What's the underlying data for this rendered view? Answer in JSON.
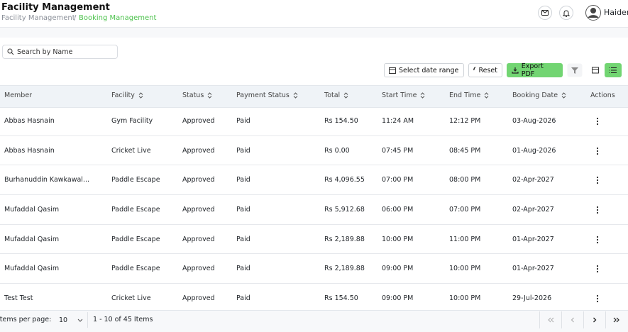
{
  "header": {
    "title": "Facility Management",
    "breadcrumb": [
      "Facility Management",
      "Booking Management"
    ],
    "separator": "/",
    "user": "Haider"
  },
  "toolbar": {
    "search_placeholder": "Search by Name",
    "date_range": "Select date range",
    "reset": "Reset",
    "export": "Export PDF"
  },
  "table": {
    "columns": [
      {
        "label": "Member",
        "sortable": false
      },
      {
        "label": "Facility",
        "sortable": true
      },
      {
        "label": "Status",
        "sortable": true
      },
      {
        "label": "Payment Status",
        "sortable": true
      },
      {
        "label": "Total",
        "sortable": true
      },
      {
        "label": "Start Time",
        "sortable": true
      },
      {
        "label": "End Time",
        "sortable": true
      },
      {
        "label": "Booking Date",
        "sortable": true
      },
      {
        "label": "Actions",
        "sortable": false
      }
    ],
    "rows": [
      [
        "Abbas Hasnain",
        "Gym Facility",
        "Approved",
        "Paid",
        "Rs 154.50",
        "11:24 AM",
        "12:12 PM",
        "03-Aug-2026"
      ],
      [
        "Abbas Hasnain",
        "Cricket Live",
        "Approved",
        "Paid",
        "Rs 0.00",
        "07:45 PM",
        "08:45 PM",
        "01-Aug-2026"
      ],
      [
        "Burhanuddin Kawkawal...",
        "Paddle Escape",
        "Approved",
        "Paid",
        "Rs 4,096.55",
        "07:00 PM",
        "08:00 PM",
        "02-Apr-2027"
      ],
      [
        "Mufaddal Qasim",
        "Paddle Escape",
        "Approved",
        "Paid",
        "Rs 5,912.68",
        "06:00 PM",
        "07:00 PM",
        "02-Apr-2027"
      ],
      [
        "Mufaddal Qasim",
        "Paddle Escape",
        "Approved",
        "Paid",
        "Rs 2,189.88",
        "10:00 PM",
        "11:00 PM",
        "01-Apr-2027"
      ],
      [
        "Mufaddal Qasim",
        "Paddle Escape",
        "Approved",
        "Paid",
        "Rs 2,189.88",
        "09:00 PM",
        "10:00 PM",
        "01-Apr-2027"
      ],
      [
        "Test Test",
        "Cricket Live",
        "Approved",
        "Paid",
        "Rs 154.50",
        "09:00 PM",
        "10:00 PM",
        "29-Jul-2026"
      ]
    ]
  },
  "pagination": {
    "items_per_page_label": "Items per page:",
    "items_per_page": "10",
    "range": "1 - 10 of 45 Items"
  }
}
